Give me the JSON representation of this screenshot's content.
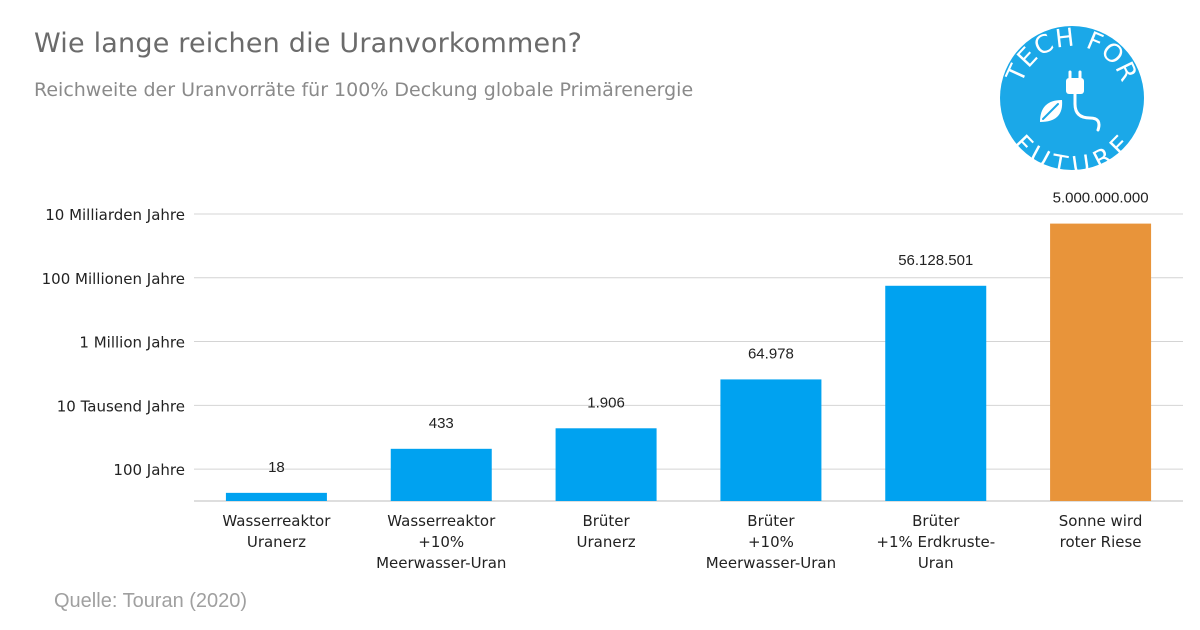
{
  "chart_data": {
    "type": "bar",
    "title": "Wie lange reichen die Uranvorkommen?",
    "subtitle": "Reichweite der Uranvorräte für 100% Deckung globale Primärenergie",
    "y_scale": "log",
    "ylim": [
      10,
      10000000000
    ],
    "y_ticks": [
      {
        "value": 100,
        "label": "100 Jahre"
      },
      {
        "value": 10000,
        "label": "10 Tausend Jahre"
      },
      {
        "value": 1000000,
        "label": "1 Million Jahre"
      },
      {
        "value": 100000000,
        "label": "100 Millionen Jahre"
      },
      {
        "value": 10000000000,
        "label": "10 Milliarden Jahre"
      }
    ],
    "grid": true,
    "categories": [
      [
        "Wasserreaktor",
        "Uranerz"
      ],
      [
        "Wasserreaktor",
        "+10%",
        "Meerwasser-Uran"
      ],
      [
        "Brüter",
        "Uranerz"
      ],
      [
        "Brüter",
        "+10%",
        "Meerwasser-Uran"
      ],
      [
        "Brüter",
        "+1% Erdkruste-",
        "Uran"
      ],
      [
        "Sonne wird",
        "roter Riese"
      ]
    ],
    "values": [
      18,
      433,
      1906,
      64978,
      56128501,
      5000000000
    ],
    "value_labels": [
      "18",
      "433",
      "1.906",
      "64.978",
      "56.128.501",
      "5.000.000.000"
    ],
    "colors": [
      "#00a2f0",
      "#00a2f0",
      "#00a2f0",
      "#00a2f0",
      "#00a2f0",
      "#e8943a"
    ],
    "source": "Quelle: Touran (2020)"
  },
  "logo": {
    "text_top": "TECH FOR",
    "text_bottom": "FUTURE",
    "color": "#1ba8e8",
    "icon": "plug-leaf-icon"
  }
}
